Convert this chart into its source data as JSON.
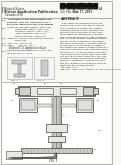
{
  "bg_color": "#f0f0ec",
  "page_bg": "#f8f8f5",
  "barcode_color": "#111111",
  "text_color": "#2a2a2a",
  "diagram_bg": "#ffffff",
  "line_color": "#555555",
  "light_fill": "#e8e8e5",
  "mid_fill": "#d0d0cc",
  "dark_fill": "#b8b8b5"
}
